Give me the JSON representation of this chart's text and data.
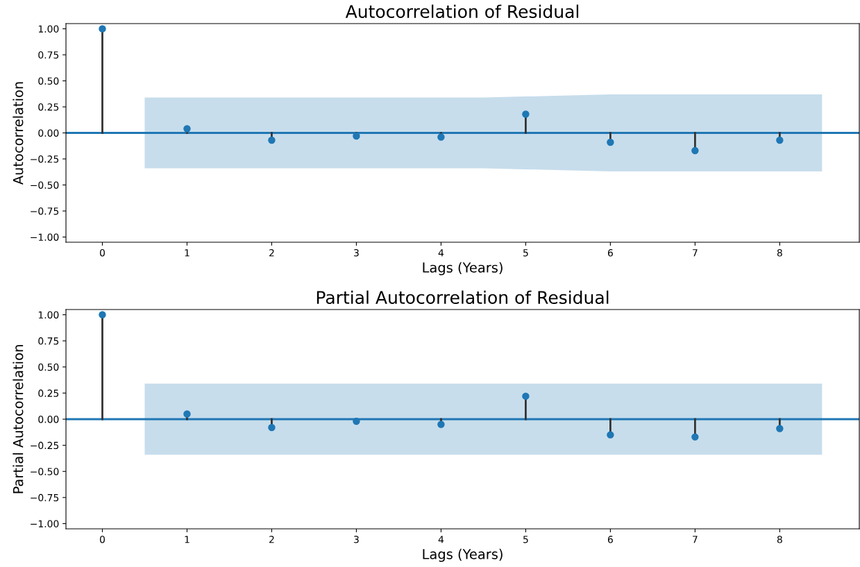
{
  "chart_data": [
    {
      "type": "lollipop",
      "title": "Autocorrelation of Residual",
      "xlabel": "Lags (Years)",
      "ylabel": "Autocorrelation",
      "xlim": [
        -0.43,
        8.94
      ],
      "xticks": [
        0,
        1,
        2,
        3,
        4,
        5,
        6,
        7,
        8
      ],
      "ylim": [
        -1.05,
        1.05
      ],
      "yticks": [
        {
          "value": -1.0,
          "label": "−1.00"
        },
        {
          "value": -0.75,
          "label": "−0.75"
        },
        {
          "value": -0.5,
          "label": "−0.50"
        },
        {
          "value": -0.25,
          "label": "−0.25"
        },
        {
          "value": 0,
          "label": "0.00"
        },
        {
          "value": 0.25,
          "label": "0.25"
        },
        {
          "value": 0.5,
          "label": "0.50"
        },
        {
          "value": 0.75,
          "label": "0.75"
        },
        {
          "value": 1.0,
          "label": "1.00"
        }
      ],
      "grid": false,
      "legend": false,
      "series": [
        {
          "type": "line",
          "color": "#1f77b4",
          "x": [
            -0.43,
            0.5,
            4.5,
            6,
            8.5,
            8.94
          ],
          "values": [
            0,
            0,
            0,
            0,
            0,
            0
          ],
          "lower": [
            null,
            -0.34,
            -0.34,
            -0.37,
            -0.37,
            null
          ],
          "upper": [
            null,
            0.34,
            0.34,
            0.37,
            0.37,
            null
          ]
        },
        {
          "type": "lollipop",
          "marker": "circle",
          "color": "#1f77b4",
          "x": [
            0,
            1,
            2,
            3,
            4,
            5,
            6,
            7,
            8
          ],
          "values": [
            1.0,
            0.04,
            -0.07,
            -0.03,
            -0.04,
            0.18,
            -0.09,
            -0.17,
            -0.07
          ]
        }
      ]
    },
    {
      "type": "lollipop",
      "title": "Partial Autocorrelation of Residual",
      "xlabel": "Lags (Years)",
      "ylabel": "Partial Autocorrelation",
      "xlim": [
        -0.43,
        8.94
      ],
      "xticks": [
        0,
        1,
        2,
        3,
        4,
        5,
        6,
        7,
        8
      ],
      "ylim": [
        -1.05,
        1.05
      ],
      "yticks": [
        {
          "value": -1.0,
          "label": "−1.00"
        },
        {
          "value": -0.75,
          "label": "−0.75"
        },
        {
          "value": -0.5,
          "label": "−0.50"
        },
        {
          "value": -0.25,
          "label": "−0.25"
        },
        {
          "value": 0,
          "label": "0.00"
        },
        {
          "value": 0.25,
          "label": "0.25"
        },
        {
          "value": 0.5,
          "label": "0.50"
        },
        {
          "value": 0.75,
          "label": "0.75"
        },
        {
          "value": 1.0,
          "label": "1.00"
        }
      ],
      "grid": false,
      "legend": false,
      "series": [
        {
          "type": "line",
          "color": "#1f77b4",
          "x": [
            -0.43,
            0.5,
            8.5,
            8.94
          ],
          "values": [
            0,
            0,
            0,
            0
          ],
          "lower": [
            null,
            -0.34,
            -0.34,
            null
          ],
          "upper": [
            null,
            0.34,
            0.34,
            null
          ]
        },
        {
          "type": "lollipop",
          "marker": "circle",
          "color": "#1f77b4",
          "x": [
            0,
            1,
            2,
            3,
            4,
            5,
            6,
            7,
            8
          ],
          "values": [
            1.0,
            0.05,
            -0.08,
            -0.02,
            -0.05,
            0.22,
            -0.15,
            -0.17,
            -0.09
          ]
        }
      ]
    }
  ]
}
